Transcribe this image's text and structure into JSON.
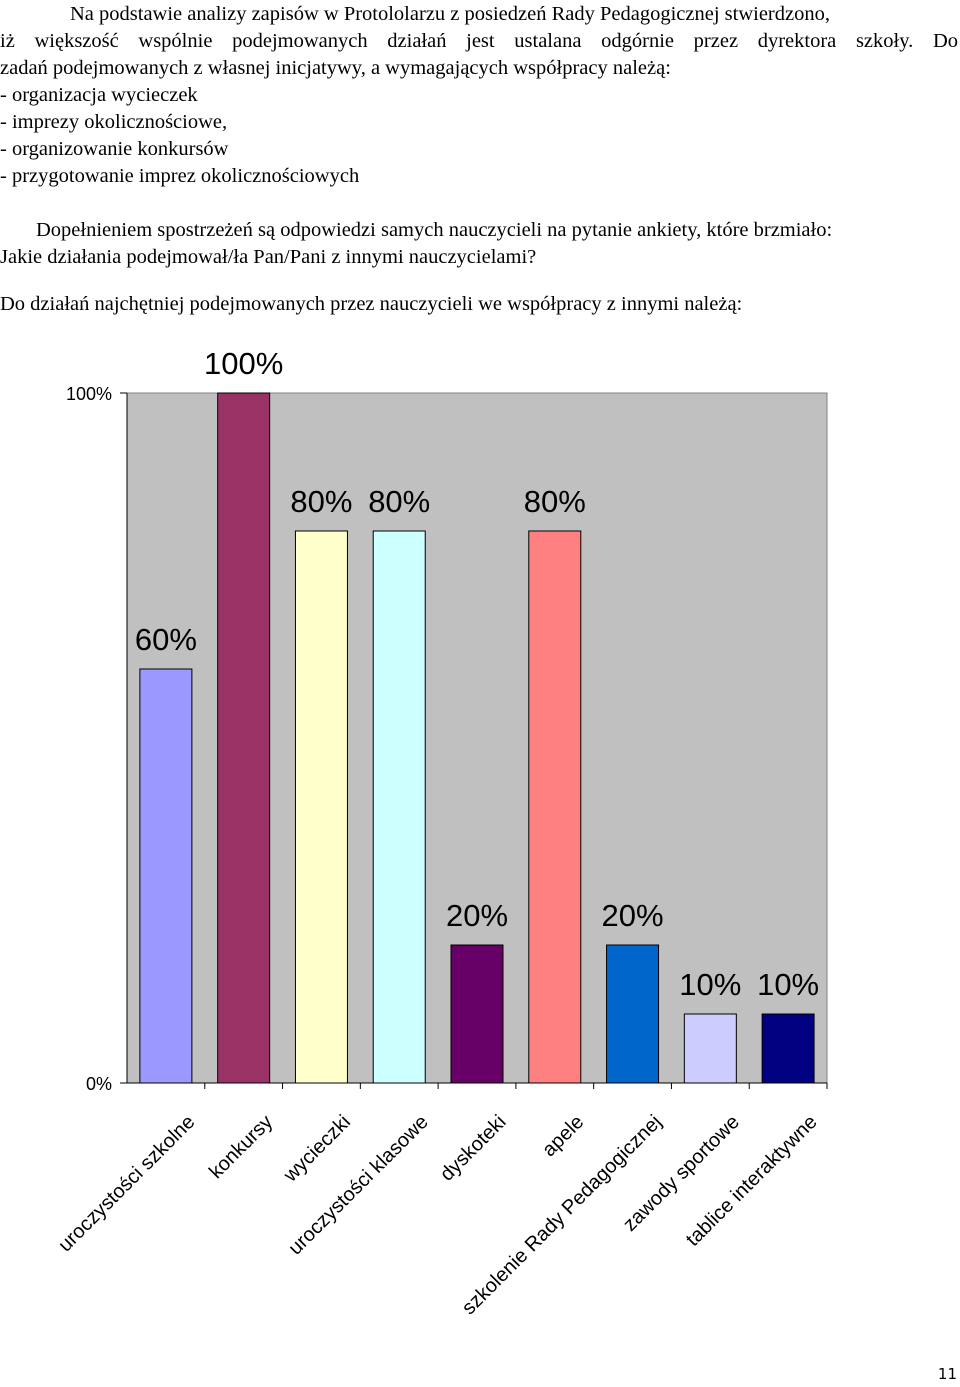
{
  "intro": {
    "line1": "Na podstawie analizy zapisów w Protololarzu z posiedzeń Rady Pedagogicznej stwierdzono,",
    "line2": "iż większość wspólnie podejmowanych działań jest ustalana odgórnie przez dyrektora szkoły. Do",
    "line3": "zadań podejmowanych z własnej inicjatywy, a wymagających współpracy należą:",
    "items": [
      "- organizacja wycieczek",
      "-  imprezy okolicznościowe,",
      "- organizowanie konkursów",
      "- przygotowanie imprez okolicznościowych"
    ]
  },
  "survey": {
    "line1": "Dopełnieniem spostrzeżeń są odpowiedzi samych nauczycieli na pytanie ankiety, które brzmiało:",
    "line2": "Jakie działania podejmował/ła Pan/Pani z innymi nauczycielami?"
  },
  "lead": "Do działań najchętniej podejmowanych przez nauczycieli we współpracy z innymi należą:",
  "chart_data": {
    "type": "bar",
    "categories": [
      "uroczystości szkolne",
      "konkursy",
      "wycieczki",
      "uroczystości klasowe",
      "dyskoteki",
      "apele",
      "szkolenie Rady Pedagogicznej",
      "zawody sportowe",
      "tablice interaktywne"
    ],
    "values": [
      60,
      100,
      80,
      80,
      20,
      80,
      20,
      10,
      10
    ],
    "data_labels": [
      "60%",
      "100%",
      "80%",
      "80%",
      "20%",
      "80%",
      "20%",
      "10%",
      "10%"
    ],
    "colors": [
      "#9999ff",
      "#993366",
      "#ffffcc",
      "#ccffff",
      "#660066",
      "#ff8080",
      "#0066cc",
      "#ccccff",
      "#000080"
    ],
    "ylim": [
      0,
      100
    ],
    "yticks": [
      "0%",
      "100%"
    ],
    "plot_background": "#c0c0c0",
    "grid": false,
    "legend": "none"
  },
  "page_number": "11"
}
